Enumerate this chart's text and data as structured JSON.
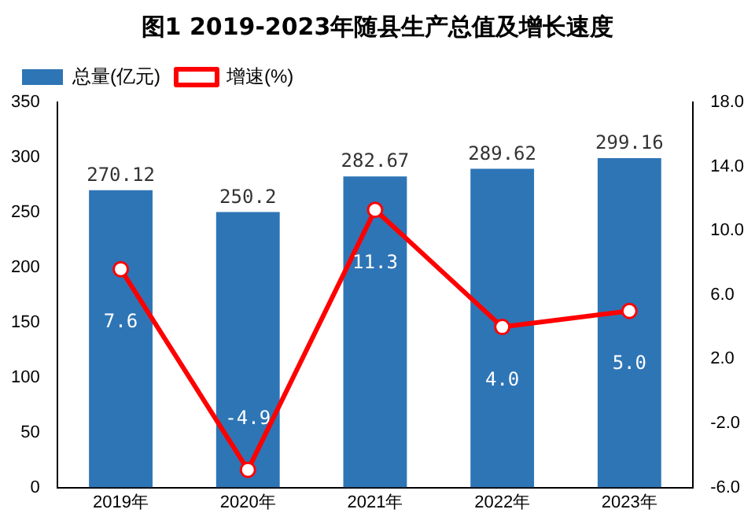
{
  "chart_data": {
    "type": "bar",
    "title": "图1  2019-2023年随县生产总值及增长速度",
    "categories": [
      "2019年",
      "2020年",
      "2021年",
      "2022年",
      "2023年"
    ],
    "series": [
      {
        "name": "总量(亿元)",
        "color": "#2e75b6",
        "values": [
          270.12,
          250.2,
          282.67,
          289.62,
          299.16
        ],
        "value_labels": [
          "270.12",
          "250.2",
          "282.67",
          "289.62",
          "299.16"
        ]
      },
      {
        "name": "增速(%)",
        "type": "line",
        "axis": "y2",
        "color": "#ff0000",
        "marker": "circle",
        "line_style": "solid",
        "values": [
          7.6,
          -4.9,
          11.3,
          4.0,
          5.0
        ],
        "value_labels": [
          "7.6",
          "-4.9",
          "11.3",
          "4.0",
          "5.0"
        ]
      }
    ],
    "ylim": [
      0,
      350
    ],
    "yticks": [
      0,
      50,
      100,
      150,
      200,
      250,
      300,
      350
    ],
    "y2lim": [
      -6,
      18
    ],
    "y2ticks": [
      {
        "value": -6,
        "label": "-6.0"
      },
      {
        "value": -2,
        "label": "-2.0"
      },
      {
        "value": 2,
        "label": "2.0"
      },
      {
        "value": 6,
        "label": "6.0"
      },
      {
        "value": 10,
        "label": "10.0"
      },
      {
        "value": 14,
        "label": "14.0"
      },
      {
        "value": 18,
        "label": "18.0"
      }
    ],
    "grid": false,
    "legend": "top left"
  }
}
